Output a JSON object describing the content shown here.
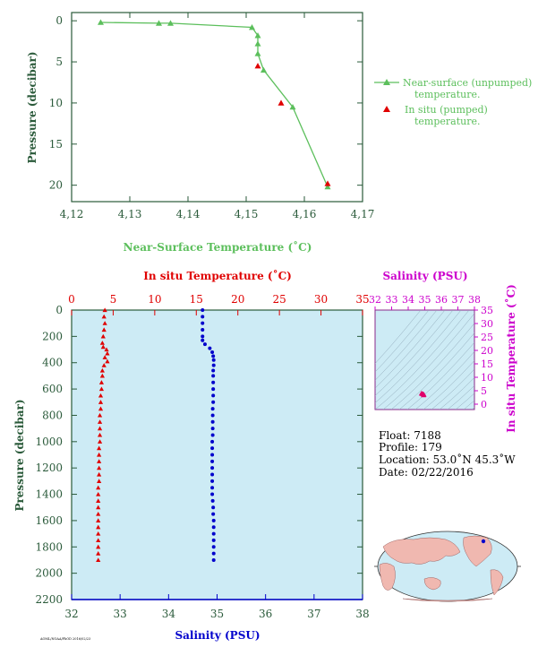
{
  "colors": {
    "green": "#5cbf5c",
    "axis_dark": "#2a5a3a",
    "red": "#e00000",
    "blue": "#0000cc",
    "magenta": "#cc00cc",
    "panel_bg": "#cdebf5"
  },
  "top_chart": {
    "xlabel": "Near-Surface Temperature (˚C)",
    "ylabel": "Pressure (decibar)",
    "legend": [
      {
        "marker": "line-triangle",
        "color": "#5cbf5c",
        "line1": "Near-surface (unpumped)",
        "line2": "temperature."
      },
      {
        "marker": "triangle",
        "color": "#e00000",
        "line1": "In situ (pumped)",
        "line2": "temperature."
      }
    ]
  },
  "bottom_chart": {
    "top_xlabel": "In situ Temperature (˚C)",
    "bottom_xlabel": "Salinity (PSU)",
    "ylabel": "Pressure (decibar)",
    "footer_text": "AOML/NOAA/PhOD 2016/02/23"
  },
  "ts_plot": {
    "top_label": "Salinity (PSU)",
    "right_label": "In situ Temperature (˚C)"
  },
  "float_info": {
    "float": "Float:  7188",
    "profile": "Profile:  179",
    "location": "Location:  53.0˚N  45.3˚W",
    "date": "Date:  02/22/2016"
  },
  "chart_data": [
    {
      "type": "line",
      "name": "near-surface",
      "xlim": [
        4.12,
        4.17
      ],
      "ylim": [
        22,
        -1
      ],
      "xticks": [
        "4,12",
        "4,13",
        "4,14",
        "4,15",
        "4,16",
        "4,17"
      ],
      "yticks": [
        0,
        5,
        10,
        15,
        20
      ],
      "series": [
        {
          "name": "Near-surface (unpumped) temperature.",
          "color": "#5cbf5c",
          "marker": "triangle",
          "line": true,
          "points": [
            [
              4.125,
              0.2
            ],
            [
              4.135,
              0.3
            ],
            [
              4.137,
              0.3
            ],
            [
              4.151,
              0.8
            ],
            [
              4.152,
              1.8
            ],
            [
              4.152,
              2.8
            ],
            [
              4.152,
              4.0
            ],
            [
              4.153,
              6.0
            ],
            [
              4.158,
              10.5
            ],
            [
              4.164,
              20.2
            ]
          ]
        },
        {
          "name": "In situ (pumped) temperature.",
          "color": "#e00000",
          "marker": "triangle",
          "line": false,
          "points": [
            [
              4.152,
              5.5
            ],
            [
              4.156,
              10.0
            ],
            [
              4.164,
              19.8
            ]
          ]
        }
      ]
    },
    {
      "type": "scatter",
      "name": "profile",
      "ylim": [
        2200,
        0
      ],
      "yticks": [
        0,
        200,
        400,
        600,
        800,
        1000,
        1200,
        1400,
        1600,
        1800,
        2000,
        2200
      ],
      "temperature_axis": {
        "lim": [
          0,
          35
        ],
        "ticks": [
          0,
          5,
          10,
          15,
          20,
          25,
          30,
          35
        ]
      },
      "salinity_axis": {
        "lim": [
          32,
          38
        ],
        "ticks": [
          32,
          33,
          34,
          35,
          36,
          37,
          38
        ]
      },
      "temperature": [
        [
          4.0,
          0
        ],
        [
          3.9,
          50
        ],
        [
          4.0,
          100
        ],
        [
          3.9,
          150
        ],
        [
          3.8,
          200
        ],
        [
          3.7,
          250
        ],
        [
          3.8,
          280
        ],
        [
          4.2,
          300
        ],
        [
          4.3,
          330
        ],
        [
          4.0,
          360
        ],
        [
          4.3,
          390
        ],
        [
          3.9,
          420
        ],
        [
          3.7,
          460
        ],
        [
          3.7,
          500
        ],
        [
          3.6,
          550
        ],
        [
          3.6,
          600
        ],
        [
          3.5,
          650
        ],
        [
          3.5,
          700
        ],
        [
          3.5,
          750
        ],
        [
          3.4,
          800
        ],
        [
          3.4,
          850
        ],
        [
          3.4,
          900
        ],
        [
          3.4,
          950
        ],
        [
          3.4,
          1000
        ],
        [
          3.3,
          1050
        ],
        [
          3.3,
          1100
        ],
        [
          3.3,
          1150
        ],
        [
          3.3,
          1200
        ],
        [
          3.3,
          1250
        ],
        [
          3.3,
          1300
        ],
        [
          3.2,
          1350
        ],
        [
          3.2,
          1400
        ],
        [
          3.2,
          1450
        ],
        [
          3.2,
          1500
        ],
        [
          3.2,
          1550
        ],
        [
          3.2,
          1600
        ],
        [
          3.2,
          1650
        ],
        [
          3.2,
          1700
        ],
        [
          3.2,
          1750
        ],
        [
          3.2,
          1800
        ],
        [
          3.2,
          1850
        ],
        [
          3.2,
          1900
        ]
      ],
      "salinity": [
        [
          34.7,
          0
        ],
        [
          34.7,
          50
        ],
        [
          34.7,
          100
        ],
        [
          34.7,
          150
        ],
        [
          34.7,
          200
        ],
        [
          34.7,
          230
        ],
        [
          34.75,
          260
        ],
        [
          34.85,
          290
        ],
        [
          34.9,
          320
        ],
        [
          34.92,
          350
        ],
        [
          34.93,
          380
        ],
        [
          34.93,
          420
        ],
        [
          34.92,
          460
        ],
        [
          34.92,
          500
        ],
        [
          34.92,
          550
        ],
        [
          34.92,
          600
        ],
        [
          34.92,
          650
        ],
        [
          34.92,
          700
        ],
        [
          34.91,
          750
        ],
        [
          34.91,
          800
        ],
        [
          34.91,
          850
        ],
        [
          34.91,
          900
        ],
        [
          34.91,
          950
        ],
        [
          34.9,
          1000
        ],
        [
          34.9,
          1050
        ],
        [
          34.9,
          1100
        ],
        [
          34.9,
          1150
        ],
        [
          34.9,
          1200
        ],
        [
          34.9,
          1250
        ],
        [
          34.9,
          1300
        ],
        [
          34.9,
          1350
        ],
        [
          34.9,
          1400
        ],
        [
          34.91,
          1450
        ],
        [
          34.92,
          1500
        ],
        [
          34.92,
          1550
        ],
        [
          34.93,
          1600
        ],
        [
          34.93,
          1650
        ],
        [
          34.93,
          1700
        ],
        [
          34.93,
          1750
        ],
        [
          34.93,
          1800
        ],
        [
          34.93,
          1850
        ],
        [
          34.93,
          1900
        ]
      ]
    },
    {
      "type": "scatter",
      "name": "ts",
      "xlim": [
        32,
        38
      ],
      "ylim": [
        -2,
        35
      ],
      "xticks": [
        32,
        33,
        34,
        35,
        36,
        37,
        38
      ],
      "yticks": [
        0,
        5,
        10,
        15,
        20,
        25,
        30,
        35
      ],
      "points": [
        [
          34.8,
          4.0
        ],
        [
          34.9,
          3.8
        ],
        [
          34.95,
          3.6
        ],
        [
          34.85,
          3.9
        ],
        [
          34.92,
          3.4
        ]
      ]
    }
  ]
}
